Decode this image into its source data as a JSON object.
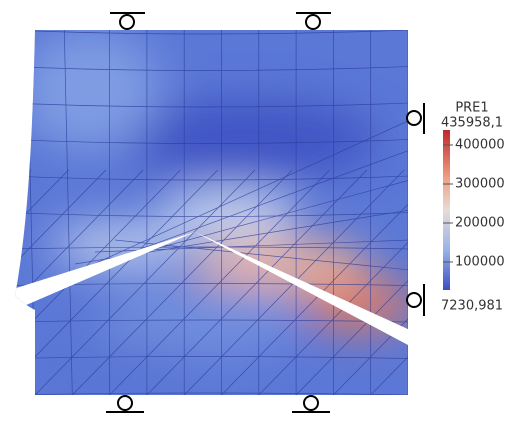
{
  "colorbar": {
    "title": "PRE1",
    "max_label": "435958,1",
    "min_label": "7230,981",
    "ticks": [
      400000,
      300000,
      200000,
      100000
    ]
  }
}
